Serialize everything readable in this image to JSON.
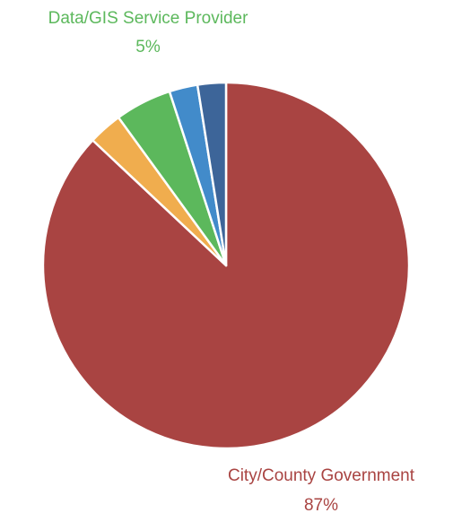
{
  "chart_data": {
    "type": "pie",
    "slices": [
      {
        "value": 87,
        "color": "#a94442",
        "label": "City/County Government",
        "value_label": "87%",
        "labeled": true
      },
      {
        "value": 3,
        "color": "#f0ad4e",
        "labeled": false
      },
      {
        "value": 5,
        "color": "#5cb85c",
        "label": "Data/GIS Service Provider",
        "value_label": "5%",
        "labeled": true
      },
      {
        "value": 2.5,
        "color": "#428bca",
        "labeled": false
      },
      {
        "value": 2.5,
        "color": "#3d6599",
        "labeled": false
      }
    ]
  }
}
